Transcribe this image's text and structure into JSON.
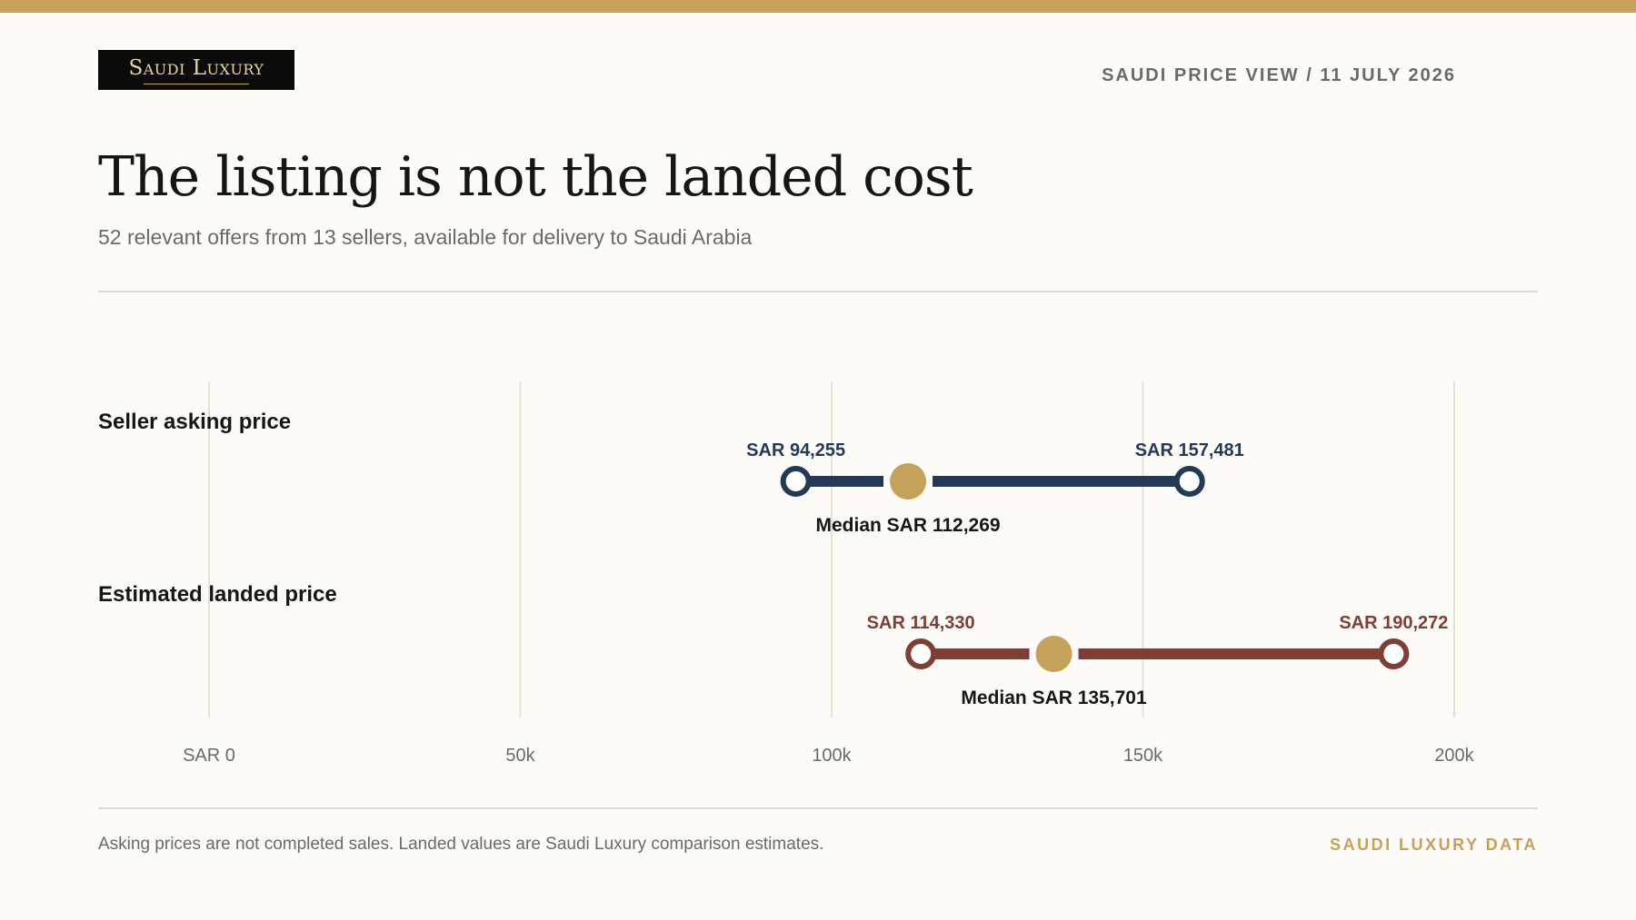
{
  "brand": {
    "logo_text": "Saudi Luxury",
    "dateline": "SAUDI PRICE VIEW / 11 JULY 2026",
    "footer": "SAUDI LUXURY DATA"
  },
  "headline": {
    "title": "The listing is not the landed cost",
    "subtitle": "52 relevant offers from 13 sellers, available for delivery to Saudi Arabia"
  },
  "footnote": "Asking prices are not completed sales. Landed values are Saudi Luxury comparison estimates.",
  "colors": {
    "accent_gold": "#c6a15a",
    "asking_navy": "#233a57",
    "landed_brown": "#7f3e33",
    "grid": "#e6e3d3",
    "background": "#fcfbf7"
  },
  "chart_data": {
    "type": "range",
    "x_range": [
      0,
      200000
    ],
    "ticks": [
      {
        "value": 0,
        "label": "SAR 0"
      },
      {
        "value": 50000,
        "label": "50k"
      },
      {
        "value": 100000,
        "label": "100k"
      },
      {
        "value": 150000,
        "label": "150k"
      },
      {
        "value": 200000,
        "label": "200k"
      }
    ],
    "grid": true,
    "series": [
      {
        "name": "Seller asking price",
        "min": 94255,
        "max": 157481,
        "median": 112269,
        "min_label": "SAR 94,255",
        "max_label": "SAR 157,481",
        "median_label": "Median SAR 112,269",
        "color": "#233a57"
      },
      {
        "name": "Estimated landed price",
        "min": 114330,
        "max": 190272,
        "median": 135701,
        "min_label": "SAR 114,330",
        "max_label": "SAR 190,272",
        "median_label": "Median SAR 135,701",
        "color": "#7f3e33"
      }
    ]
  }
}
